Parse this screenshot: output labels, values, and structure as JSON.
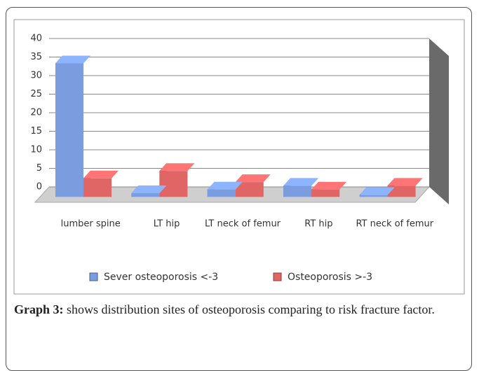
{
  "chart_data": {
    "type": "bar3d",
    "categories": [
      "lumber spine",
      "LT hip",
      "LT neck of femur",
      "RT hip",
      "RT neck of femur"
    ],
    "series": [
      {
        "name": "Sever osteoporosis <-3",
        "color": "#7b9de0",
        "values": [
          36,
          1,
          2,
          3,
          0.5
        ]
      },
      {
        "name": "Osteoporosis >-3",
        "color": "#e06666",
        "values": [
          5,
          7,
          4,
          2,
          3
        ]
      }
    ],
    "ylim": [
      0,
      40
    ],
    "yticks": [
      0,
      5,
      10,
      15,
      20,
      25,
      30,
      35,
      40
    ],
    "grid": true,
    "legend": "bottom"
  },
  "caption": {
    "label": "Graph 3:",
    "text": "shows distribution sites of osteoporosis comparing to risk fracture factor."
  }
}
